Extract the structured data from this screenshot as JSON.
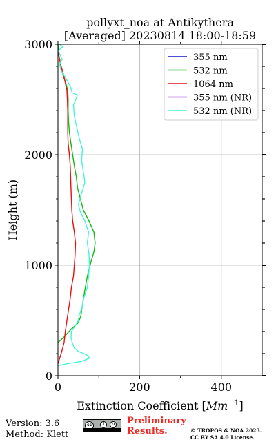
{
  "chart_data": {
    "type": "line",
    "title_line1": "pollyxt_noa at Antikythera",
    "title_line2": "[Averaged] 20230814 18:00-18:59",
    "xlabel_prefix": "Extinction Coefficient [",
    "xlabel_unit": "Mm",
    "xlabel_exp": "−1",
    "xlabel_suffix": "]",
    "ylabel": "Height (m)",
    "xlim": [
      0,
      500
    ],
    "ylim": [
      0,
      3000
    ],
    "xticks": [
      0,
      200,
      400
    ],
    "yticks": [
      0,
      1000,
      2000,
      3000
    ],
    "grid": true,
    "legend_position": "top-right",
    "series": [
      {
        "name": "355 nm",
        "color": "#1515c8",
        "points": []
      },
      {
        "name": "532 nm",
        "color": "#11b811",
        "points": [
          [
            0,
            300
          ],
          [
            15,
            350
          ],
          [
            32,
            420
          ],
          [
            50,
            480
          ],
          [
            56,
            540
          ],
          [
            60,
            640
          ],
          [
            66,
            780
          ],
          [
            72,
            900
          ],
          [
            80,
            1020
          ],
          [
            88,
            1120
          ],
          [
            91,
            1200
          ],
          [
            88,
            1300
          ],
          [
            76,
            1400
          ],
          [
            62,
            1500
          ],
          [
            55,
            1600
          ],
          [
            48,
            1700
          ],
          [
            45,
            1800
          ],
          [
            40,
            1900
          ],
          [
            36,
            2000
          ],
          [
            32,
            2100
          ],
          [
            28,
            2200
          ],
          [
            26,
            2300
          ],
          [
            25,
            2400
          ],
          [
            25,
            2500
          ],
          [
            24,
            2580
          ],
          [
            20,
            2640
          ],
          [
            14,
            2700
          ],
          [
            10,
            2760
          ],
          [
            6,
            2820
          ],
          [
            3,
            2880
          ],
          [
            1,
            2940
          ],
          [
            0,
            3000
          ]
        ]
      },
      {
        "name": "1064 nm",
        "color": "#e81010",
        "points": [
          [
            0,
            110
          ],
          [
            8,
            200
          ],
          [
            15,
            300
          ],
          [
            18,
            400
          ],
          [
            22,
            500
          ],
          [
            26,
            600
          ],
          [
            30,
            700
          ],
          [
            33,
            800
          ],
          [
            38,
            900
          ],
          [
            40,
            1000
          ],
          [
            42,
            1100
          ],
          [
            43,
            1200
          ],
          [
            40,
            1300
          ],
          [
            36,
            1400
          ],
          [
            34,
            1500
          ],
          [
            33,
            1600
          ],
          [
            32,
            1700
          ],
          [
            31,
            1800
          ],
          [
            30,
            1900
          ],
          [
            28,
            2000
          ],
          [
            25,
            2100
          ],
          [
            24,
            2200
          ],
          [
            24,
            2300
          ],
          [
            24,
            2400
          ],
          [
            23,
            2500
          ],
          [
            22,
            2580
          ],
          [
            18,
            2650
          ],
          [
            14,
            2720
          ],
          [
            8,
            2800
          ],
          [
            3,
            2880
          ],
          [
            0,
            2950
          ]
        ]
      },
      {
        "name": "355 nm (NR)",
        "color": "#9b4be8",
        "points": []
      },
      {
        "name": "532 nm (NR)",
        "color": "#43f5d2",
        "points": [
          [
            0,
            90
          ],
          [
            25,
            110
          ],
          [
            58,
            130
          ],
          [
            78,
            160
          ],
          [
            70,
            190
          ],
          [
            50,
            220
          ],
          [
            40,
            250
          ],
          [
            35,
            300
          ],
          [
            32,
            350
          ],
          [
            33,
            400
          ],
          [
            42,
            450
          ],
          [
            50,
            500
          ],
          [
            52,
            550
          ],
          [
            58,
            600
          ],
          [
            63,
            700
          ],
          [
            72,
            800
          ],
          [
            75,
            900
          ],
          [
            77,
            1000
          ],
          [
            76,
            1100
          ],
          [
            72,
            1200
          ],
          [
            75,
            1300
          ],
          [
            66,
            1400
          ],
          [
            55,
            1480
          ],
          [
            50,
            1550
          ],
          [
            58,
            1650
          ],
          [
            66,
            1750
          ],
          [
            62,
            1850
          ],
          [
            58,
            1950
          ],
          [
            60,
            2050
          ],
          [
            52,
            2150
          ],
          [
            46,
            2250
          ],
          [
            40,
            2350
          ],
          [
            38,
            2450
          ],
          [
            48,
            2540
          ],
          [
            35,
            2560
          ],
          [
            30,
            2620
          ],
          [
            18,
            2700
          ],
          [
            8,
            2760
          ],
          [
            4,
            2820
          ],
          [
            10,
            2860
          ],
          [
            6,
            2900
          ],
          [
            0,
            2940
          ],
          [
            12,
            2980
          ],
          [
            4,
            3000
          ]
        ]
      }
    ]
  },
  "footer": {
    "version": "Version: 3.6",
    "method": "Method: Klett",
    "preliminary_line1": "Preliminary",
    "preliminary_line2": "Results.",
    "copyright_line1": "© TROPOS & NOA 2023.",
    "copyright_line2": "CC BY SA 4.0 License."
  },
  "license_badge": {
    "icon_names": [
      "cc-icon",
      "by-icon",
      "sa-icon"
    ]
  }
}
